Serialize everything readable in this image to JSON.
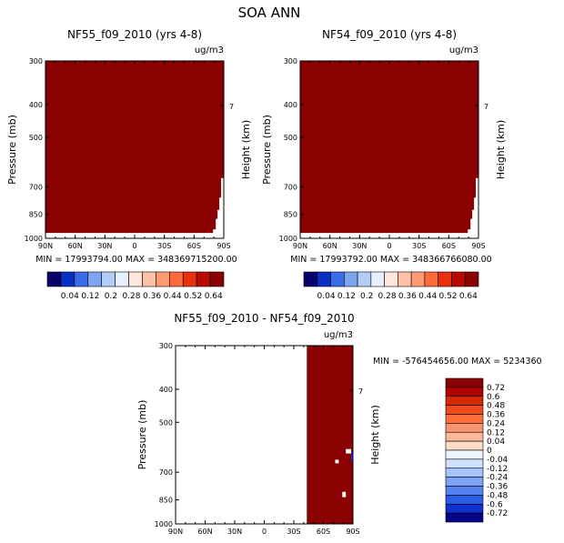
{
  "figure_title": "SOA ANN",
  "chart_data": [
    {
      "type": "heatmap",
      "title": "NF55_f09_2010 (yrs 4-8)",
      "units": "ug/m3",
      "ylabel": "Pressure (mb)",
      "ylabel_right": "Height (km)",
      "x_ticks": [
        "90N",
        "60N",
        "30N",
        "0",
        "30S",
        "60S",
        "90S"
      ],
      "y_ticks": [
        "300",
        "400",
        "500",
        "700",
        "850",
        "1000"
      ],
      "y_ticks_right": [
        "7"
      ],
      "stats": "MIN = 17993794.00    MAX = 348369715200.00",
      "fill_color": "#8b0000",
      "colorbar_labels": [
        "0.04",
        "0.12",
        "0.2",
        "0.28",
        "0.36",
        "0.44",
        "0.52",
        "0.64"
      ]
    },
    {
      "type": "heatmap",
      "title": "NF54_f09_2010 (yrs 4-8)",
      "units": "ug/m3",
      "ylabel": "Pressure (mb)",
      "ylabel_right": "Height (km)",
      "x_ticks": [
        "90N",
        "60N",
        "30N",
        "0",
        "30S",
        "60S",
        "90S"
      ],
      "y_ticks": [
        "300",
        "400",
        "500",
        "700",
        "850",
        "1000"
      ],
      "y_ticks_right": [
        "7"
      ],
      "stats": "MIN = 17993792.00    MAX = 348366766080.00",
      "fill_color": "#8b0000",
      "colorbar_labels": [
        "0.04",
        "0.12",
        "0.2",
        "0.28",
        "0.36",
        "0.44",
        "0.52",
        "0.64"
      ]
    },
    {
      "type": "heatmap",
      "title": "NF55_f09_2010 - NF54_f09_2010",
      "units": "ug/m3",
      "ylabel": "Pressure (mb)",
      "ylabel_right": "Height (km)",
      "x_ticks": [
        "90N",
        "60N",
        "30N",
        "0",
        "30S",
        "60S",
        "90S"
      ],
      "y_ticks": [
        "300",
        "400",
        "500",
        "700",
        "850",
        "1000"
      ],
      "y_ticks_right": [
        "7"
      ],
      "stats": "MIN = -576454656.00    MAX = 5234360",
      "fill_color": "#8b0000",
      "colorbar_labels": [
        "0.72",
        "0.6",
        "0.48",
        "0.36",
        "0.24",
        "0.12",
        "0.04",
        "0",
        "-0.04",
        "-0.12",
        "-0.24",
        "-0.36",
        "-0.48",
        "-0.6",
        "-0.72"
      ]
    }
  ],
  "colorbars": {
    "top": [
      "#08006b",
      "#0a2fc4",
      "#3b6ce8",
      "#7ea4f2",
      "#b3cdf7",
      "#e6f0ff",
      "#ffe6dc",
      "#ffc2a8",
      "#ff9a73",
      "#ff6a3d",
      "#e8300f",
      "#b80a00",
      "#8b0000"
    ],
    "diff": [
      "#8b0000",
      "#b00000",
      "#d42a00",
      "#ee4a1a",
      "#ff6d3d",
      "#ff9470",
      "#ffb89a",
      "#ffdcc8",
      "#eef4ff",
      "#d0e0ff",
      "#a8c4ff",
      "#7ea4f5",
      "#5482f2",
      "#2a5ce8",
      "#1230d0",
      "#05058a"
    ]
  }
}
